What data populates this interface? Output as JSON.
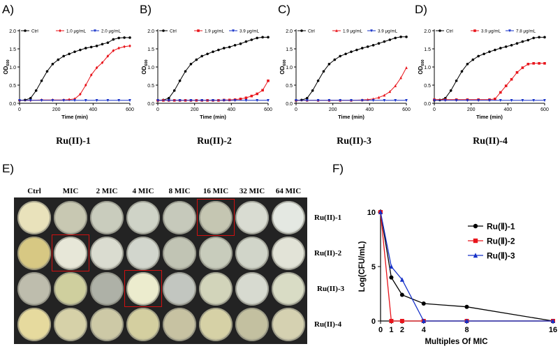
{
  "panels": {
    "A": {
      "letter": "A)",
      "caption": "Ru(II)-1",
      "legend": [
        {
          "label": "Ctrl",
          "color": "#000000",
          "marker": "circle"
        },
        {
          "label": "1.0 μg/mL",
          "color": "#e8141b",
          "marker": "diamond"
        },
        {
          "label": "2.0 μg/mL",
          "color": "#1631c8",
          "marker": "triangle-down"
        }
      ]
    },
    "B": {
      "letter": "B)",
      "caption": "Ru(II)-2",
      "legend": [
        {
          "label": "Ctrl",
          "color": "#000000",
          "marker": "circle"
        },
        {
          "label": "1.9 μg/mL",
          "color": "#e8141b",
          "marker": "square"
        },
        {
          "label": "3.9 μg/mL",
          "color": "#1631c8",
          "marker": "triangle-down"
        }
      ]
    },
    "C": {
      "letter": "C)",
      "caption": "Ru(II)-3",
      "legend": [
        {
          "label": "Ctrl",
          "color": "#000000",
          "marker": "circle"
        },
        {
          "label": "1.9 μg/mL",
          "color": "#e8141b",
          "marker": "triangle-up"
        },
        {
          "label": "3.9 μg/mL",
          "color": "#1631c8",
          "marker": "triangle-down"
        }
      ]
    },
    "D": {
      "letter": "D)",
      "caption": "Ru(II)-4",
      "legend": [
        {
          "label": "Ctrl",
          "color": "#000000",
          "marker": "circle"
        },
        {
          "label": "3.9 μg/mL",
          "color": "#e8141b",
          "marker": "square"
        },
        {
          "label": "7.8 μg/mL",
          "color": "#1631c8",
          "marker": "triangle-down"
        }
      ]
    },
    "E": {
      "letter": "E)"
    },
    "F": {
      "letter": "F)"
    }
  },
  "growth_axes": {
    "xlabel": "Time (min)",
    "ylabel": "OD",
    "ylabel_sub": "600",
    "xticks": [
      "0",
      "200",
      "400",
      "600"
    ],
    "yticks": [
      "0.0",
      "0.5",
      "1.0",
      "1.5",
      "2.0"
    ]
  },
  "plates": {
    "columns": [
      "Ctrl",
      "MIC",
      "2 MIC",
      "4 MIC",
      "8 MIC",
      "16 MIC",
      "32 MIC",
      "64 MIC"
    ],
    "rows": [
      "Ru(II)-1",
      "Ru(II)-2",
      "Ru(II)-3",
      "Ru(II)-4"
    ],
    "colors": [
      [
        "#e9e2bb",
        "#c8c8b2",
        "#c9ccbd",
        "#cfd3c7",
        "#c6c9bb",
        "#c5c6b2",
        "#d9dcd2",
        "#e4e8e2"
      ],
      [
        "#d7c883",
        "#e7e7d8",
        "#dadcd0",
        "#d2d6cd",
        "#c1c4b4",
        "#c8ccbc",
        "#d1d5c9",
        "#e2e3d7"
      ],
      [
        "#bebdad",
        "#cfcf9e",
        "#aeb1a7",
        "#ececce",
        "#c2c6c0",
        "#d2d4ba",
        "#d7dad0",
        "#d9dcc5"
      ],
      [
        "#e6da9e",
        "#d6d1a8",
        "#cdc9a6",
        "#d4cfa0",
        "#c7c2a2",
        "#d6d1a6",
        "#c3c0a0",
        "#d5d1b1"
      ]
    ],
    "highlight_color": "#d01010",
    "highlighted": [
      [
        0,
        5
      ],
      [
        1,
        1
      ],
      [
        2,
        3
      ]
    ]
  },
  "chart_data": [
    {
      "type": "line",
      "title": "",
      "xlabel": "Time (min)",
      "ylabel": "OD600",
      "xlim": [
        0,
        600
      ],
      "ylim": [
        0,
        2.0
      ],
      "series": [
        {
          "name": "Ctrl",
          "color": "#000000",
          "x": [
            0,
            30,
            60,
            90,
            120,
            150,
            180,
            210,
            240,
            270,
            300,
            330,
            360,
            390,
            420,
            450,
            480,
            510,
            540,
            570,
            600
          ],
          "y": [
            0.08,
            0.09,
            0.14,
            0.35,
            0.62,
            0.88,
            1.08,
            1.2,
            1.3,
            1.36,
            1.42,
            1.47,
            1.52,
            1.55,
            1.58,
            1.63,
            1.67,
            1.76,
            1.8,
            1.81,
            1.81
          ]
        },
        {
          "name": "1.0 μg/mL",
          "color": "#e8141b",
          "x": [
            0,
            60,
            120,
            180,
            240,
            270,
            300,
            330,
            360,
            390,
            420,
            450,
            480,
            510,
            540,
            570,
            600
          ],
          "y": [
            0.08,
            0.08,
            0.09,
            0.09,
            0.09,
            0.1,
            0.12,
            0.25,
            0.5,
            0.78,
            0.98,
            1.12,
            1.3,
            1.45,
            1.52,
            1.56,
            1.58
          ]
        },
        {
          "name": "2.0 μg/mL",
          "color": "#1631c8",
          "x": [
            0,
            60,
            120,
            180,
            240,
            300,
            360,
            420,
            480,
            540,
            600
          ],
          "y": [
            0.08,
            0.08,
            0.08,
            0.08,
            0.08,
            0.08,
            0.08,
            0.08,
            0.08,
            0.08,
            0.08
          ]
        }
      ]
    },
    {
      "type": "line",
      "title": "",
      "xlabel": "Time (min)",
      "ylabel": "OD600",
      "xlim": [
        0,
        600
      ],
      "ylim": [
        0,
        2.0
      ],
      "series": [
        {
          "name": "Ctrl",
          "color": "#000000",
          "x": [
            0,
            30,
            60,
            90,
            120,
            150,
            180,
            210,
            240,
            270,
            300,
            330,
            360,
            390,
            420,
            450,
            480,
            510,
            540,
            570,
            600
          ],
          "y": [
            0.08,
            0.09,
            0.14,
            0.35,
            0.62,
            0.88,
            1.08,
            1.2,
            1.3,
            1.36,
            1.42,
            1.47,
            1.52,
            1.55,
            1.6,
            1.64,
            1.7,
            1.75,
            1.8,
            1.82,
            1.82
          ]
        },
        {
          "name": "1.9 μg/mL",
          "color": "#e8141b",
          "x": [
            0,
            30,
            60,
            90,
            120,
            150,
            180,
            210,
            240,
            270,
            300,
            330,
            360,
            390,
            420,
            450,
            480,
            510,
            540,
            570,
            600
          ],
          "y": [
            0.08,
            0.08,
            0.08,
            0.08,
            0.08,
            0.08,
            0.08,
            0.08,
            0.08,
            0.08,
            0.08,
            0.08,
            0.09,
            0.09,
            0.1,
            0.12,
            0.15,
            0.2,
            0.26,
            0.36,
            0.62
          ]
        },
        {
          "name": "3.9 μg/mL",
          "color": "#1631c8",
          "x": [
            0,
            60,
            120,
            180,
            240,
            300,
            360,
            420,
            480,
            540,
            600
          ],
          "y": [
            0.08,
            0.08,
            0.08,
            0.08,
            0.08,
            0.08,
            0.08,
            0.08,
            0.08,
            0.08,
            0.08
          ]
        }
      ]
    },
    {
      "type": "line",
      "title": "",
      "xlabel": "Time (min)",
      "ylabel": "OD600",
      "xlim": [
        0,
        600
      ],
      "ylim": [
        0,
        2.0
      ],
      "series": [
        {
          "name": "Ctrl",
          "color": "#000000",
          "x": [
            0,
            30,
            60,
            90,
            120,
            150,
            180,
            210,
            240,
            270,
            300,
            330,
            360,
            390,
            420,
            450,
            480,
            510,
            540,
            570,
            600
          ],
          "y": [
            0.08,
            0.09,
            0.14,
            0.35,
            0.62,
            0.88,
            1.08,
            1.2,
            1.3,
            1.36,
            1.42,
            1.47,
            1.52,
            1.56,
            1.6,
            1.65,
            1.7,
            1.75,
            1.8,
            1.83,
            1.83
          ]
        },
        {
          "name": "1.9 μg/mL",
          "color": "#e8141b",
          "x": [
            0,
            60,
            120,
            180,
            240,
            300,
            360,
            390,
            420,
            450,
            480,
            510,
            540,
            570,
            600
          ],
          "y": [
            0.08,
            0.08,
            0.08,
            0.08,
            0.08,
            0.08,
            0.09,
            0.1,
            0.12,
            0.16,
            0.22,
            0.32,
            0.48,
            0.7,
            0.98
          ]
        },
        {
          "name": "3.9 μg/mL",
          "color": "#1631c8",
          "x": [
            0,
            60,
            120,
            180,
            240,
            300,
            360,
            420,
            480,
            540,
            600
          ],
          "y": [
            0.08,
            0.08,
            0.08,
            0.08,
            0.08,
            0.08,
            0.08,
            0.08,
            0.08,
            0.08,
            0.08
          ]
        }
      ]
    },
    {
      "type": "line",
      "title": "",
      "xlabel": "Time (min)",
      "ylabel": "OD600",
      "xlim": [
        0,
        600
      ],
      "ylim": [
        0,
        2.0
      ],
      "series": [
        {
          "name": "Ctrl",
          "color": "#000000",
          "x": [
            0,
            30,
            60,
            90,
            120,
            150,
            180,
            210,
            240,
            270,
            300,
            330,
            360,
            390,
            420,
            450,
            480,
            510,
            540,
            570,
            600
          ],
          "y": [
            0.08,
            0.09,
            0.14,
            0.35,
            0.62,
            0.88,
            1.08,
            1.2,
            1.3,
            1.36,
            1.42,
            1.47,
            1.52,
            1.56,
            1.6,
            1.65,
            1.7,
            1.74,
            1.8,
            1.82,
            1.82
          ]
        },
        {
          "name": "3.9 μg/mL",
          "color": "#e8141b",
          "x": [
            0,
            60,
            120,
            180,
            240,
            300,
            330,
            360,
            390,
            420,
            450,
            480,
            510,
            540,
            570,
            600
          ],
          "y": [
            0.1,
            0.1,
            0.1,
            0.1,
            0.1,
            0.1,
            0.12,
            0.3,
            0.48,
            0.66,
            0.85,
            0.98,
            1.08,
            1.1,
            1.1,
            1.1
          ]
        },
        {
          "name": "7.8 μg/mL",
          "color": "#1631c8",
          "x": [
            0,
            60,
            120,
            180,
            240,
            300,
            360,
            420,
            480,
            540,
            600
          ],
          "y": [
            0.08,
            0.08,
            0.08,
            0.08,
            0.08,
            0.08,
            0.08,
            0.08,
            0.08,
            0.08,
            0.08
          ]
        }
      ]
    },
    {
      "type": "line",
      "title": "",
      "xlabel": "Multiples Of MIC",
      "ylabel": "Log(CFU/mL)",
      "xlim": [
        0,
        16
      ],
      "ylim": [
        0,
        10
      ],
      "xticks": [
        "0",
        "1",
        "2",
        "4",
        "8",
        "16"
      ],
      "yticks": [
        "0",
        "5",
        "10"
      ],
      "series": [
        {
          "name": "Ru(Ⅱ)-1",
          "color": "#000000",
          "marker": "circle",
          "x": [
            0,
            1,
            2,
            4,
            8,
            16
          ],
          "y": [
            10.0,
            4.0,
            2.4,
            1.6,
            1.3,
            0.0
          ]
        },
        {
          "name": "Ru(Ⅱ)-2",
          "color": "#e8141b",
          "marker": "square",
          "x": [
            0,
            1,
            2,
            4,
            8,
            16
          ],
          "y": [
            10.0,
            0.0,
            0.0,
            0.0,
            0.0,
            0.0
          ]
        },
        {
          "name": "Ru(Ⅱ)-3",
          "color": "#1631c8",
          "marker": "triangle-up",
          "x": [
            0,
            1,
            2,
            4,
            8,
            16
          ],
          "y": [
            10.0,
            5.0,
            3.8,
            0.0,
            0.0,
            0.0
          ]
        }
      ]
    }
  ]
}
